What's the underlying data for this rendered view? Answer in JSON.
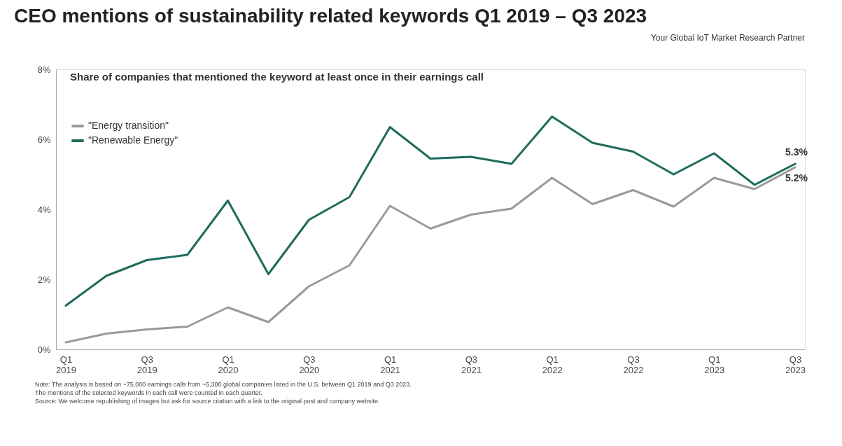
{
  "chart_data": {
    "type": "line",
    "title": "CEO mentions of sustainability related keywords Q1 2019 – Q3 2023",
    "subtitle": "Share of companies that mentioned the keyword at least once in their earnings call",
    "categories": [
      "Q1 2019",
      null,
      "Q3 2019",
      null,
      "Q1 2020",
      null,
      "Q3 2020",
      null,
      "Q1 2021",
      null,
      "Q3 2021",
      null,
      "Q1 2022",
      null,
      "Q3 2022",
      null,
      "Q1 2023",
      null,
      "Q3 2023"
    ],
    "series": [
      {
        "name": "\"Energy transition\"",
        "color": "#9a9a9a",
        "values": [
          0.2,
          0.45,
          0.57,
          0.65,
          1.2,
          0.78,
          1.8,
          2.4,
          4.1,
          3.45,
          3.85,
          4.02,
          4.9,
          4.15,
          4.55,
          4.08,
          4.9,
          4.58,
          5.2
        ],
        "value_labels": [
          null,
          null,
          null,
          null,
          null,
          null,
          null,
          null,
          null,
          null,
          null,
          null,
          null,
          null,
          null,
          null,
          null,
          null,
          "5.2%"
        ]
      },
      {
        "name": "\"Renewable Energy\"",
        "color": "#1e6b5c",
        "values": [
          1.25,
          2.1,
          2.55,
          2.7,
          4.25,
          2.15,
          3.7,
          4.35,
          6.35,
          5.45,
          5.5,
          5.3,
          6.65,
          5.9,
          5.65,
          5.0,
          5.6,
          4.7,
          5.3
        ],
        "value_labels": [
          null,
          null,
          null,
          null,
          null,
          null,
          null,
          null,
          null,
          null,
          null,
          null,
          null,
          null,
          null,
          null,
          null,
          null,
          "5.3%"
        ]
      }
    ],
    "ylim": [
      0,
      8
    ],
    "yticks": [
      {
        "value": 0,
        "label": "0%"
      },
      {
        "value": 2,
        "label": "2%"
      },
      {
        "value": 4,
        "label": "4%"
      },
      {
        "value": 6,
        "label": "6%"
      },
      {
        "value": 8,
        "label": "8%"
      }
    ],
    "grid": false,
    "legend": "top left",
    "marker": "none",
    "line_style": "solid",
    "annotations": [
      "Your Global IoT Market Research Partner",
      "Note: The analysis is based on ~75,000 earnings calls from ~5,300 global companies listed in the U.S. between Q1 2019 and Q3 2023.",
      "The mentions of the selected keywords in each call were counted in each quarter.",
      "Source: We welcome republishing of images but ask for source citation with a link to the original post and company website."
    ]
  }
}
